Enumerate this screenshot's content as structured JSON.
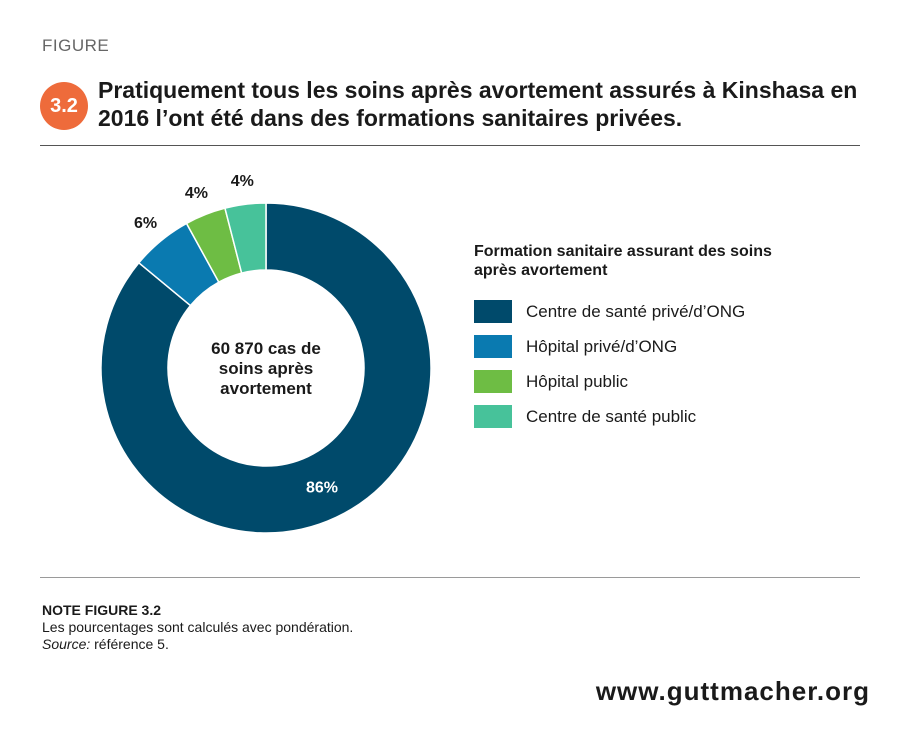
{
  "header": {
    "figure_label": "FIGURE",
    "figure_number": "3.2",
    "title": "Pratiquement tous les soins après avortement assurés à Kinshasa en 2016 l’ont été dans des formations sanitaires privées."
  },
  "colors": {
    "accent": "#ee6b3b"
  },
  "chart_data": {
    "type": "pie",
    "donut": true,
    "center_label": [
      "60 870 cas de",
      "soins après",
      "avortement"
    ],
    "legend_title": "Formation sanitaire assurant des soins après avortement",
    "legend_placement": "right",
    "slices": [
      {
        "label": "Centre de santé privé/d’ONG",
        "value": 86,
        "value_label": "86%",
        "color": "#004a6b"
      },
      {
        "label": "Hôpital privé/d’ONG",
        "value": 6,
        "value_label": "6%",
        "color": "#0a7ab0"
      },
      {
        "label": "Hôpital public",
        "value": 4,
        "value_label": "4%",
        "color": "#6ebd44"
      },
      {
        "label": "Centre de santé public",
        "value": 4,
        "value_label": "4%",
        "color": "#47c29a"
      }
    ]
  },
  "note": {
    "title": "NOTE FIGURE 3.2",
    "line1": "Les pourcentages sont calculés avec pondération.",
    "source_label": "Source:",
    "source_text": " référence 5."
  },
  "footer": {
    "url": "www.guttmacher.org"
  }
}
